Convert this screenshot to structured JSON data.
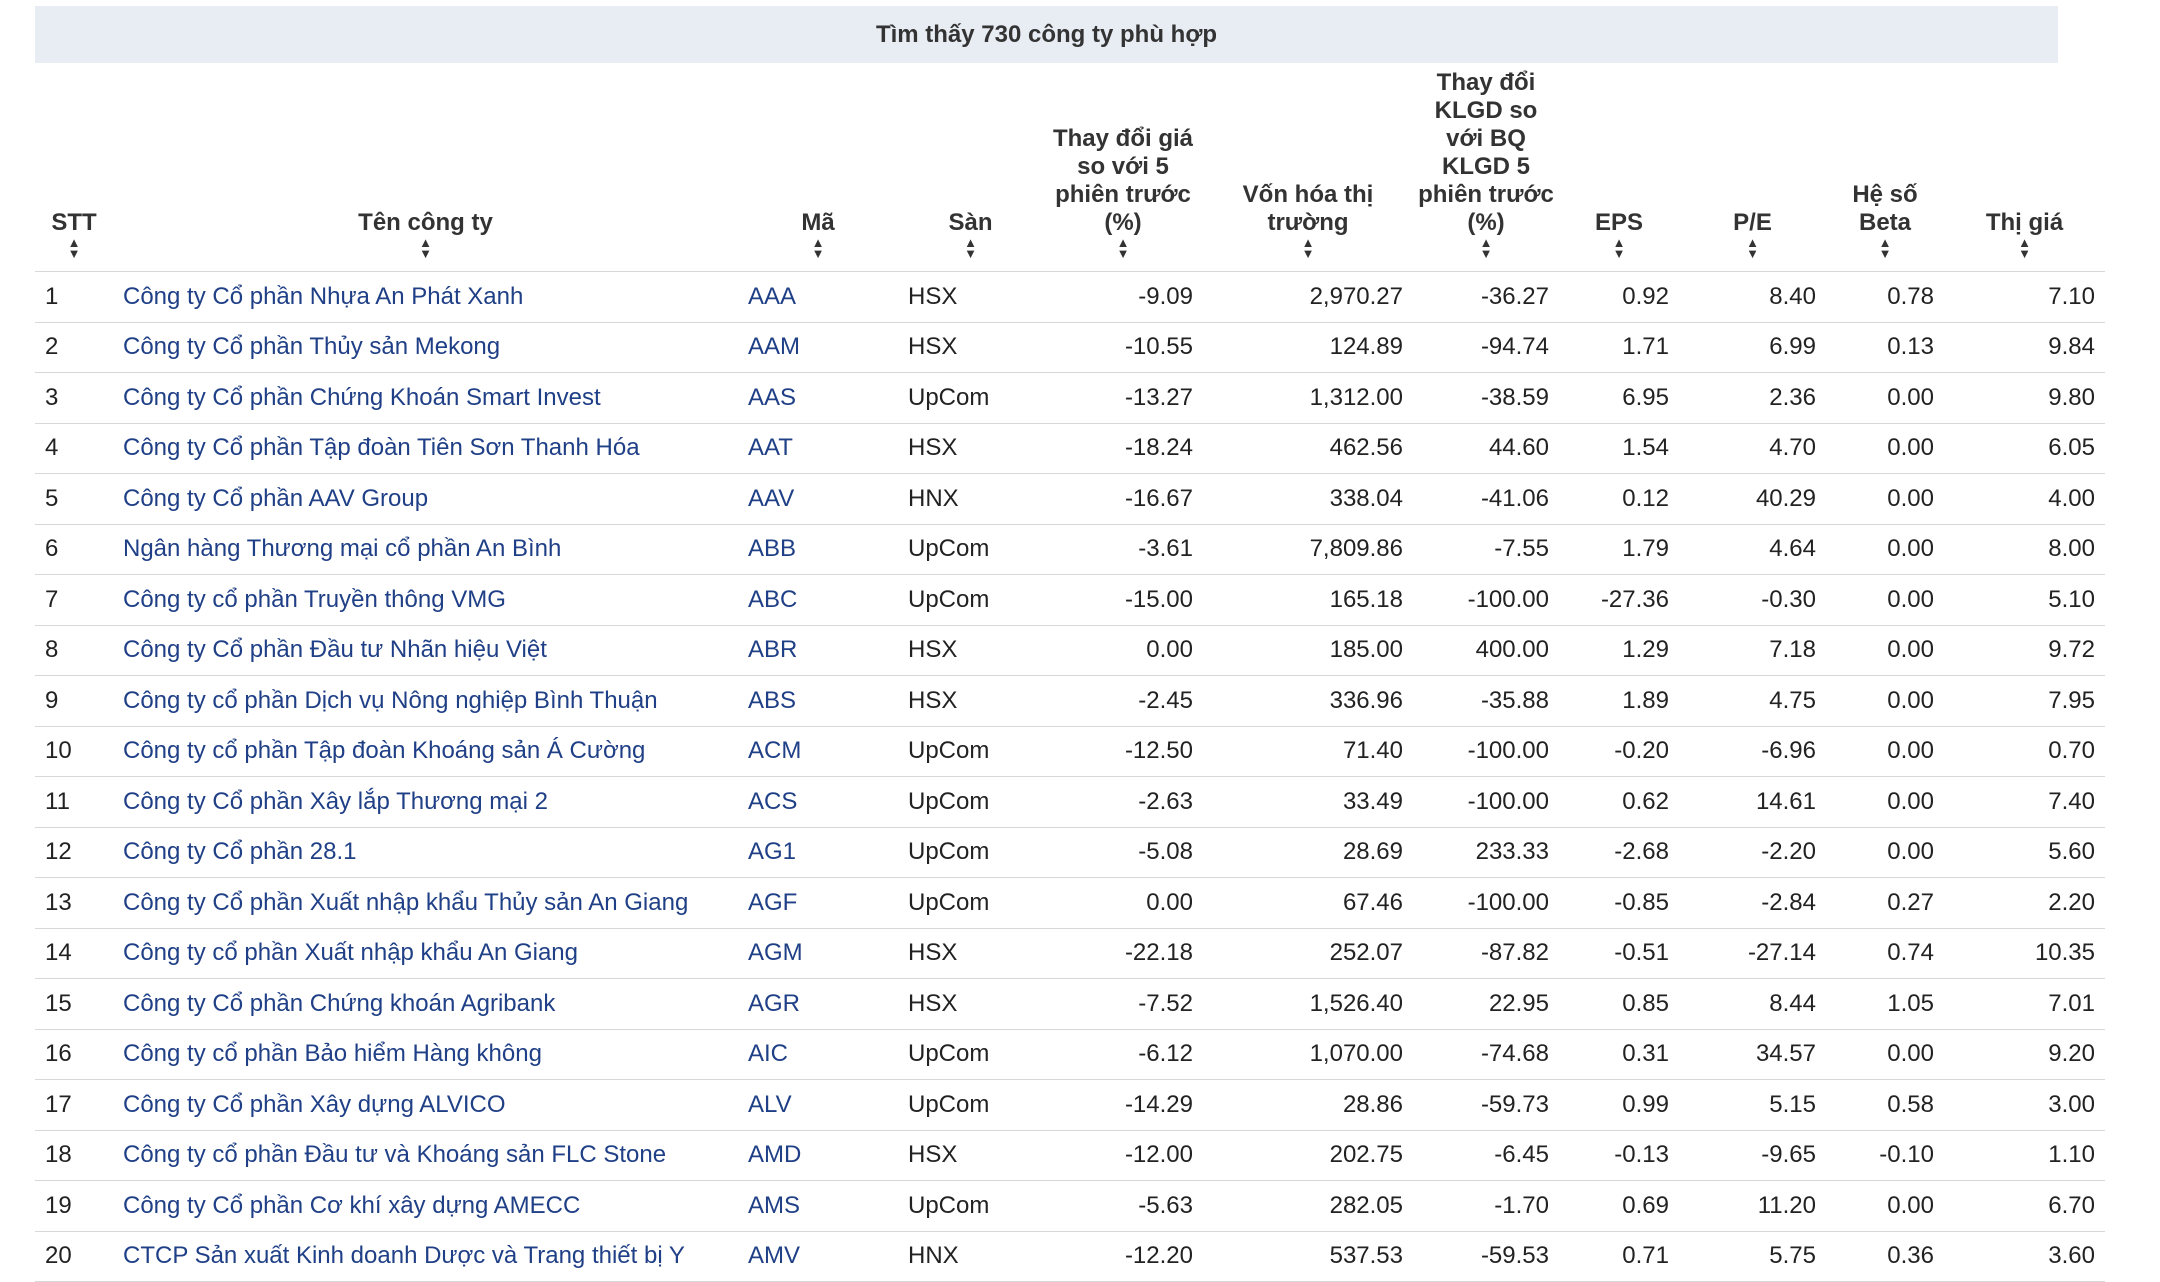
{
  "banner": "Tìm thấy 730 công ty phù hợp",
  "columns": [
    {
      "key": "stt",
      "label": "STT",
      "align": "left"
    },
    {
      "key": "name",
      "label": "Tên công ty",
      "align": "left"
    },
    {
      "key": "code",
      "label": "Mã",
      "align": "left"
    },
    {
      "key": "exchange",
      "label": "Sàn",
      "align": "left"
    },
    {
      "key": "price_change",
      "label": "Thay đổi giá so với 5 phiên trước (%)",
      "align": "right"
    },
    {
      "key": "market_cap",
      "label": "Vốn hóa thị trường",
      "align": "right"
    },
    {
      "key": "volume_change",
      "label": "Thay đổi KLGD so với BQ KLGD 5 phiên trước (%)",
      "align": "right"
    },
    {
      "key": "eps",
      "label": "EPS",
      "align": "right"
    },
    {
      "key": "pe",
      "label": "P/E",
      "align": "right"
    },
    {
      "key": "beta",
      "label": "Hệ số Beta",
      "align": "right"
    },
    {
      "key": "price",
      "label": "Thị giá",
      "align": "right"
    }
  ],
  "rows": [
    [
      "1",
      "Công ty Cổ phần Nhựa An Phát Xanh",
      "AAA",
      "HSX",
      "-9.09",
      "2,970.27",
      "-36.27",
      "0.92",
      "8.40",
      "0.78",
      "7.10"
    ],
    [
      "2",
      "Công ty Cổ phần Thủy sản Mekong",
      "AAM",
      "HSX",
      "-10.55",
      "124.89",
      "-94.74",
      "1.71",
      "6.99",
      "0.13",
      "9.84"
    ],
    [
      "3",
      "Công ty Cổ phần Chứng Khoán Smart Invest",
      "AAS",
      "UpCom",
      "-13.27",
      "1,312.00",
      "-38.59",
      "6.95",
      "2.36",
      "0.00",
      "9.80"
    ],
    [
      "4",
      "Công ty Cổ phần Tập đoàn Tiên Sơn Thanh Hóa",
      "AAT",
      "HSX",
      "-18.24",
      "462.56",
      "44.60",
      "1.54",
      "4.70",
      "0.00",
      "6.05"
    ],
    [
      "5",
      "Công ty Cổ phần AAV Group",
      "AAV",
      "HNX",
      "-16.67",
      "338.04",
      "-41.06",
      "0.12",
      "40.29",
      "0.00",
      "4.00"
    ],
    [
      "6",
      "Ngân hàng Thương mại cổ phần An Bình",
      "ABB",
      "UpCom",
      "-3.61",
      "7,809.86",
      "-7.55",
      "1.79",
      "4.64",
      "0.00",
      "8.00"
    ],
    [
      "7",
      "Công ty cổ phần Truyền thông VMG",
      "ABC",
      "UpCom",
      "-15.00",
      "165.18",
      "-100.00",
      "-27.36",
      "-0.30",
      "0.00",
      "5.10"
    ],
    [
      "8",
      "Công ty Cổ phần Đầu tư Nhãn hiệu Việt",
      "ABR",
      "HSX",
      "0.00",
      "185.00",
      "400.00",
      "1.29",
      "7.18",
      "0.00",
      "9.72"
    ],
    [
      "9",
      "Công ty cổ phần Dịch vụ Nông nghiệp Bình Thuận",
      "ABS",
      "HSX",
      "-2.45",
      "336.96",
      "-35.88",
      "1.89",
      "4.75",
      "0.00",
      "7.95"
    ],
    [
      "10",
      "Công ty cổ phần Tập đoàn Khoáng sản Á Cường",
      "ACM",
      "UpCom",
      "-12.50",
      "71.40",
      "-100.00",
      "-0.20",
      "-6.96",
      "0.00",
      "0.70"
    ],
    [
      "11",
      "Công ty Cổ phần Xây lắp Thương mại 2",
      "ACS",
      "UpCom",
      "-2.63",
      "33.49",
      "-100.00",
      "0.62",
      "14.61",
      "0.00",
      "7.40"
    ],
    [
      "12",
      "Công ty Cổ phần 28.1",
      "AG1",
      "UpCom",
      "-5.08",
      "28.69",
      "233.33",
      "-2.68",
      "-2.20",
      "0.00",
      "5.60"
    ],
    [
      "13",
      "Công ty Cổ phần Xuất nhập khẩu Thủy sản An Giang",
      "AGF",
      "UpCom",
      "0.00",
      "67.46",
      "-100.00",
      "-0.85",
      "-2.84",
      "0.27",
      "2.20"
    ],
    [
      "14",
      "Công ty cổ phần Xuất nhập khẩu An Giang",
      "AGM",
      "HSX",
      "-22.18",
      "252.07",
      "-87.82",
      "-0.51",
      "-27.14",
      "0.74",
      "10.35"
    ],
    [
      "15",
      "Công ty Cổ phần Chứng khoán Agribank",
      "AGR",
      "HSX",
      "-7.52",
      "1,526.40",
      "22.95",
      "0.85",
      "8.44",
      "1.05",
      "7.01"
    ],
    [
      "16",
      "Công ty cổ phần Bảo hiểm Hàng không",
      "AIC",
      "UpCom",
      "-6.12",
      "1,070.00",
      "-74.68",
      "0.31",
      "34.57",
      "0.00",
      "9.20"
    ],
    [
      "17",
      "Công ty Cổ phần Xây dựng ALVICO",
      "ALV",
      "UpCom",
      "-14.29",
      "28.86",
      "-59.73",
      "0.99",
      "5.15",
      "0.58",
      "3.00"
    ],
    [
      "18",
      "Công ty cổ phần Đầu tư và Khoáng sản FLC Stone",
      "AMD",
      "HSX",
      "-12.00",
      "202.75",
      "-6.45",
      "-0.13",
      "-9.65",
      "-0.10",
      "1.10"
    ],
    [
      "19",
      "Công ty Cổ phần Cơ khí xây dựng AMECC",
      "AMS",
      "UpCom",
      "-5.63",
      "282.05",
      "-1.70",
      "0.69",
      "11.20",
      "0.00",
      "6.70"
    ],
    [
      "20",
      "CTCP Sản xuất Kinh doanh Dược và Trang thiết bị Y",
      "AMV",
      "HNX",
      "-12.20",
      "537.53",
      "-59.53",
      "0.71",
      "5.75",
      "0.36",
      "3.60"
    ]
  ],
  "icons": {
    "sort": "sort-arrows-icon"
  },
  "colors": {
    "link": "#1f3f86",
    "banner_bg": "#e8edf4",
    "border": "#d8d8d8"
  }
}
